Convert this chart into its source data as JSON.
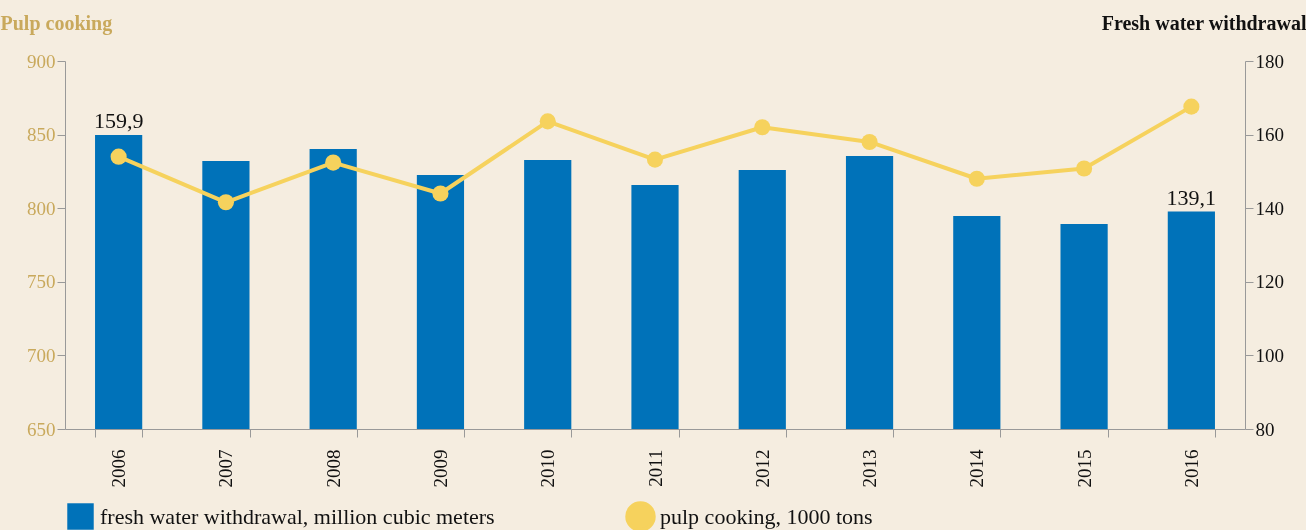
{
  "chart_data": {
    "type": "bar",
    "ylabel": "Pulp cooking",
    "y2label": "Fresh water withdrawal",
    "categories": [
      "2006",
      "2007",
      "2008",
      "2009",
      "2010",
      "2011",
      "2012",
      "2013",
      "2014",
      "2015",
      "2016"
    ],
    "series": [
      {
        "name": "fresh water withdrawal, million cubic meters",
        "axis": "y2",
        "color": "#0072b9",
        "values": [
          159.9,
          152.8,
          156.1,
          149.0,
          153.1,
          146.3,
          150.4,
          154.2,
          137.9,
          135.7,
          139.1
        ],
        "value_labels": [
          "159,9",
          null,
          null,
          null,
          null,
          null,
          null,
          null,
          null,
          null,
          "139,1"
        ]
      },
      {
        "name": "pulp cooking, 1000 tons",
        "type": "line",
        "axis": "y",
        "color": "#f6d25d",
        "marker": "circle",
        "values": [
          835,
          804,
          831,
          810,
          859,
          833,
          855,
          845,
          820,
          827,
          869
        ]
      }
    ],
    "ylim": [
      650,
      900
    ],
    "yticks": [
      650,
      700,
      750,
      800,
      850,
      900
    ],
    "y2lim": [
      80,
      180
    ],
    "y2ticks": [
      80,
      100,
      120,
      140,
      160,
      180
    ],
    "grid": false,
    "legend": "bottom"
  }
}
